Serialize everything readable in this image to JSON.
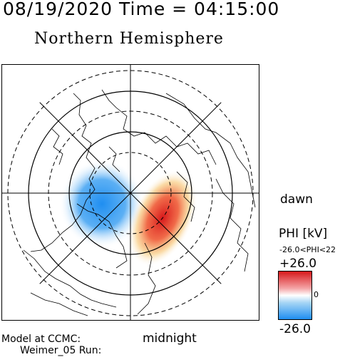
{
  "header": {
    "time_title": "08/19/2020 Time = 04:15:00",
    "hemisphere_title": "Northern Hemisphere"
  },
  "map": {
    "orientation_labels": {
      "dawn": "dawn",
      "midnight": "midnight"
    }
  },
  "colorbar": {
    "title": "PHI [kV]",
    "range_text": "-26.0<PHI<22",
    "max_label": "+26.0",
    "zero_label": "0",
    "min_label": "-26.0",
    "colors": {
      "positive": "#d7191c",
      "neutral": "#ffffff",
      "negative": "#1f8ef1"
    }
  },
  "footer": {
    "model_label": "Model at CCMC:",
    "run_label": "Weimer_05 Run:"
  }
}
